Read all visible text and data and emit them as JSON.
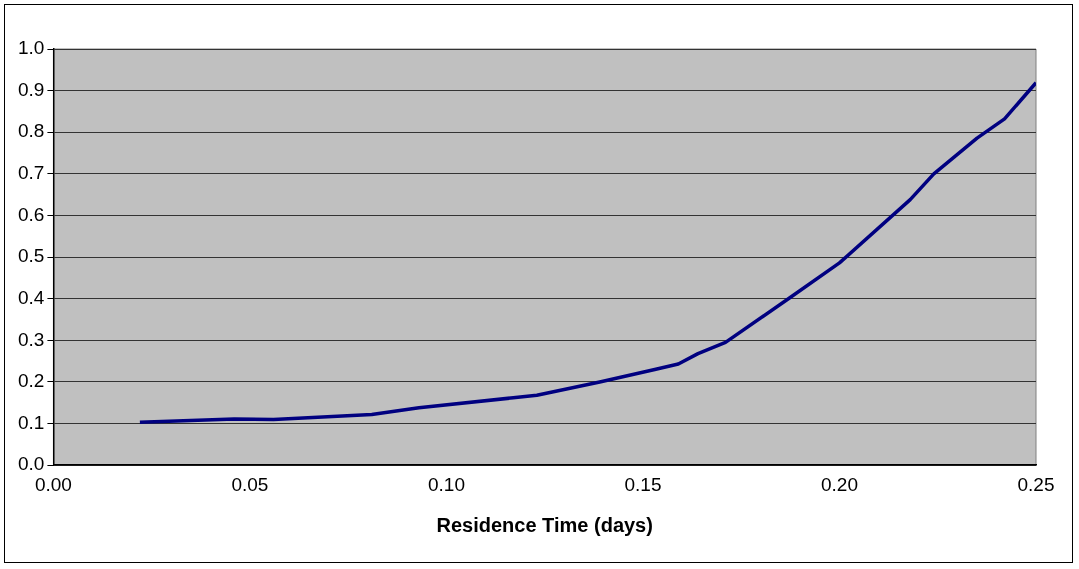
{
  "chart_data": {
    "type": "line",
    "xlabel": "Residence Time (days)",
    "x": [
      0.022,
      0.046,
      0.056,
      0.081,
      0.093,
      0.117,
      0.123,
      0.139,
      0.153,
      0.159,
      0.164,
      0.171,
      0.187,
      0.2,
      0.218,
      0.224,
      0.235,
      0.242,
      0.25
    ],
    "series": [
      {
        "color": "#000080",
        "values": [
          0.103,
          0.111,
          0.11,
          0.122,
          0.138,
          0.162,
          0.168,
          0.2,
          0.23,
          0.243,
          0.268,
          0.295,
          0.4,
          0.486,
          0.638,
          0.7,
          0.786,
          0.832,
          0.919
        ]
      }
    ],
    "xlim": [
      0,
      0.25
    ],
    "xticks": [
      {
        "value": 0,
        "label": "0.00"
      },
      {
        "value": 0.05,
        "label": "0.05"
      },
      {
        "value": 0.1,
        "label": "0.10"
      },
      {
        "value": 0.15,
        "label": "0.15"
      },
      {
        "value": 0.2,
        "label": "0.20"
      },
      {
        "value": 0.25,
        "label": "0.25"
      }
    ],
    "ylim": [
      0,
      1
    ],
    "yticks": [
      {
        "value": 0,
        "label": "0.0"
      },
      {
        "value": 0.1,
        "label": "0.1"
      },
      {
        "value": 0.2,
        "label": "0.2"
      },
      {
        "value": 0.3,
        "label": "0.3"
      },
      {
        "value": 0.4,
        "label": "0.4"
      },
      {
        "value": 0.5,
        "label": "0.5"
      },
      {
        "value": 0.6,
        "label": "0.6"
      },
      {
        "value": 0.7,
        "label": "0.7"
      },
      {
        "value": 0.8,
        "label": "0.8"
      },
      {
        "value": 0.9,
        "label": "0.9"
      },
      {
        "value": 1,
        "label": "1.0"
      }
    ],
    "grid": "y",
    "legend": false,
    "marker": "none",
    "line_style": "solid"
  }
}
